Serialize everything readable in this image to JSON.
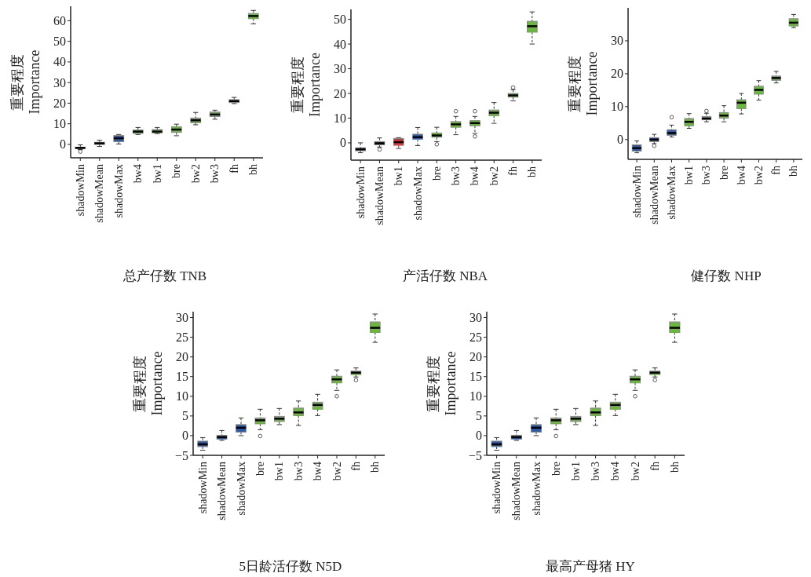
{
  "chart_data": [
    {
      "type": "box",
      "title": "总产仔数 TNB",
      "ylabel": "重要程度\nImportance",
      "categories": [
        "shadowMin",
        "shadowMean",
        "shadowMax",
        "bw4",
        "bw1",
        "bre",
        "bw2",
        "bw3",
        "fh",
        "bh"
      ],
      "colors": [
        "#2a5caa",
        "#2a5caa",
        "#2a5caa",
        "#6ab93a",
        "#6ab93a",
        "#6ab93a",
        "#6ab93a",
        "#6ab93a",
        "#6ab93a",
        "#6ab93a"
      ],
      "ylim": [
        -6.5,
        67
      ],
      "yticks": [
        0,
        10,
        20,
        30,
        40,
        50,
        60
      ],
      "grid": false,
      "boxes": [
        {
          "low": -2.5,
          "q1": -2,
          "median": -1.7,
          "q3": -1.4,
          "high": -0.2,
          "outliers": [
            -3.5
          ]
        },
        {
          "low": -1,
          "q1": 0,
          "median": 0.5,
          "q3": 1,
          "high": 2
        },
        {
          "low": 0.2,
          "q1": 1.3,
          "median": 3,
          "q3": 4.3,
          "high": 4.8
        },
        {
          "low": 4.8,
          "q1": 5.3,
          "median": 6.2,
          "q3": 7,
          "high": 8.2
        },
        {
          "low": 5.2,
          "q1": 5.6,
          "median": 6.2,
          "q3": 7.2,
          "high": 8.2
        },
        {
          "low": 4.2,
          "q1": 5.8,
          "median": 7.2,
          "q3": 8.6,
          "high": 9.8
        },
        {
          "low": 9.5,
          "q1": 10.5,
          "median": 11.7,
          "q3": 12.8,
          "high": 15.5
        },
        {
          "low": 12.2,
          "q1": 13.5,
          "median": 14.5,
          "q3": 15.7,
          "high": 16.6
        },
        {
          "low": 19.8,
          "q1": 20.3,
          "median": 21,
          "q3": 21.7,
          "high": 22.8
        },
        {
          "low": 58.5,
          "q1": 61,
          "median": 62.3,
          "q3": 63.5,
          "high": 65
        }
      ]
    },
    {
      "type": "box",
      "title": "产活仔数 NBA",
      "ylabel": "重要程度\nImportance",
      "categories": [
        "shadowMin",
        "shadowMean",
        "bw1",
        "shadowMax",
        "bre",
        "bw3",
        "bw4",
        "bw2",
        "fh",
        "bh"
      ],
      "colors": [
        "#2a5caa",
        "#2a5caa",
        "#e03030",
        "#2a5caa",
        "#6ab93a",
        "#6ab93a",
        "#6ab93a",
        "#6ab93a",
        "#6ab93a",
        "#6ab93a"
      ],
      "ylim": [
        -7,
        54
      ],
      "yticks": [
        0,
        10,
        20,
        30,
        40,
        50
      ],
      "grid": false,
      "boxes": [
        {
          "low": -4,
          "q1": -3.2,
          "median": -2.6,
          "q3": -2,
          "high": 0
        },
        {
          "low": -1.7,
          "q1": -0.8,
          "median": -0.2,
          "q3": 0.5,
          "high": 2,
          "outliers": [
            -2.7
          ]
        },
        {
          "low": -2.3,
          "q1": -1,
          "median": 0.3,
          "q3": 1.8,
          "high": 2.1
        },
        {
          "low": -1.1,
          "q1": 1.4,
          "median": 2.3,
          "q3": 3.5,
          "high": 6.2
        },
        {
          "low": 0.5,
          "q1": 2.3,
          "median": 3,
          "q3": 4,
          "high": 6.3,
          "outliers": [
            -0.6
          ]
        },
        {
          "low": 3.3,
          "q1": 6.3,
          "median": 7.5,
          "q3": 8.6,
          "high": 10.7,
          "outliers": [
            12.8
          ]
        },
        {
          "low": 3.8,
          "q1": 6.9,
          "median": 8,
          "q3": 9,
          "high": 10.7,
          "outliers": [
            12.8,
            2.6
          ]
        },
        {
          "low": 7.9,
          "q1": 11,
          "median": 12.2,
          "q3": 13.3,
          "high": 16.3
        },
        {
          "low": 17,
          "q1": 18.5,
          "median": 19.2,
          "q3": 20,
          "high": 21.5,
          "outliers": [
            22.4
          ]
        },
        {
          "low": 40,
          "q1": 44.8,
          "median": 47.2,
          "q3": 49.2,
          "high": 53
        }
      ]
    },
    {
      "type": "box",
      "title": "健仔数 NHP",
      "ylabel": "重要程度\nImportance",
      "categories": [
        "shadowMin",
        "shadowMean",
        "shadowMax",
        "bw1",
        "bw3",
        "bre",
        "bw4",
        "bw2",
        "fh",
        "bh"
      ],
      "colors": [
        "#2a5caa",
        "#2a5caa",
        "#2a5caa",
        "#6ab93a",
        "#6ab93a",
        "#6ab93a",
        "#6ab93a",
        "#6ab93a",
        "#6ab93a",
        "#6ab93a"
      ],
      "ylim": [
        -6,
        40
      ],
      "yticks": [
        0,
        10,
        20,
        30
      ],
      "grid": false,
      "boxes": [
        {
          "low": -4,
          "q1": -3.5,
          "median": -2.6,
          "q3": -1.6,
          "high": -0.4
        },
        {
          "low": -1.2,
          "q1": -0.6,
          "median": 0,
          "q3": 0.6,
          "high": 1.6,
          "outliers": [
            -1.9
          ]
        },
        {
          "low": 0.8,
          "q1": 1.3,
          "median": 2,
          "q3": 3,
          "high": 4.4,
          "outliers": [
            6.8
          ]
        },
        {
          "low": 3.4,
          "q1": 4.2,
          "median": 5.4,
          "q3": 6.4,
          "high": 7.9
        },
        {
          "low": 5.4,
          "q1": 6,
          "median": 6.4,
          "q3": 7,
          "high": 8,
          "outliers": [
            8.7
          ]
        },
        {
          "low": 5.4,
          "q1": 6.5,
          "median": 7.3,
          "q3": 8.2,
          "high": 10.3
        },
        {
          "low": 7.8,
          "q1": 9.4,
          "median": 11.2,
          "q3": 12.1,
          "high": 14
        },
        {
          "low": 12,
          "q1": 13.8,
          "median": 15.1,
          "q3": 16.2,
          "high": 17.9
        },
        {
          "low": 17.2,
          "q1": 18,
          "median": 18.7,
          "q3": 19.3,
          "high": 20.7
        },
        {
          "low": 34,
          "q1": 34.5,
          "median": 35.5,
          "q3": 36.7,
          "high": 38
        }
      ]
    },
    {
      "type": "box",
      "title": "5日龄活仔数 N5D",
      "ylabel": "重要程度\nImportance",
      "categories": [
        "shadowMin",
        "shadowMean",
        "shadowMax",
        "bre",
        "bw1",
        "bw3",
        "bw4",
        "bw2",
        "fh",
        "bh"
      ],
      "colors": [
        "#2a5caa",
        "#2a5caa",
        "#2a5caa",
        "#6ab93a",
        "#6ab93a",
        "#6ab93a",
        "#6ab93a",
        "#6ab93a",
        "#6ab93a",
        "#6ab93a"
      ],
      "ylim": [
        -5,
        31.5
      ],
      "yticks": [
        -5,
        0,
        5,
        10,
        15,
        20,
        25,
        30
      ],
      "grid": false,
      "boxes": [
        {
          "low": -3.7,
          "q1": -2.8,
          "median": -2.2,
          "q3": -1.4,
          "high": -0.5
        },
        {
          "low": -1.2,
          "q1": -0.9,
          "median": -0.4,
          "q3": 0.1,
          "high": 1.3
        },
        {
          "low": 0,
          "q1": 0.9,
          "median": 2,
          "q3": 2.8,
          "high": 4.5
        },
        {
          "low": 1.5,
          "q1": 3,
          "median": 3.9,
          "q3": 4.5,
          "high": 6.7,
          "outliers": [
            -0.1
          ]
        },
        {
          "low": 2.8,
          "q1": 3.6,
          "median": 4.3,
          "q3": 4.9,
          "high": 6.9
        },
        {
          "low": 2.6,
          "q1": 5.1,
          "median": 5.9,
          "q3": 7,
          "high": 8.8
        },
        {
          "low": 5.1,
          "q1": 6.7,
          "median": 7.8,
          "q3": 8.5,
          "high": 10.5
        },
        {
          "low": 11.5,
          "q1": 13.4,
          "median": 14.3,
          "q3": 15.1,
          "high": 16.7,
          "outliers": [
            10
          ]
        },
        {
          "low": 14.9,
          "q1": 15.5,
          "median": 16,
          "q3": 16.4,
          "high": 17.2,
          "outliers": [
            14.1
          ]
        },
        {
          "low": 23.7,
          "q1": 26.2,
          "median": 27.4,
          "q3": 28.9,
          "high": 30.9
        }
      ]
    },
    {
      "type": "box",
      "title": "最高产母猪 HY",
      "ylabel": "重要程度\nImportance",
      "categories": [
        "shadowMin",
        "shadowMean",
        "shadowMax",
        "bre",
        "bw1",
        "bw3",
        "bw4",
        "bw2",
        "fh",
        "bh"
      ],
      "colors": [
        "#2a5caa",
        "#2a5caa",
        "#2a5caa",
        "#6ab93a",
        "#6ab93a",
        "#6ab93a",
        "#6ab93a",
        "#6ab93a",
        "#6ab93a",
        "#6ab93a"
      ],
      "ylim": [
        -5,
        31.5
      ],
      "yticks": [
        -5,
        0,
        5,
        10,
        15,
        20,
        25,
        30
      ],
      "grid": false,
      "boxes": [
        {
          "low": -3.7,
          "q1": -2.8,
          "median": -2.2,
          "q3": -1.4,
          "high": -0.5
        },
        {
          "low": -1.2,
          "q1": -0.9,
          "median": -0.4,
          "q3": 0.1,
          "high": 1.3
        },
        {
          "low": 0,
          "q1": 0.9,
          "median": 2,
          "q3": 2.8,
          "high": 4.5
        },
        {
          "low": 1.5,
          "q1": 3,
          "median": 3.9,
          "q3": 4.5,
          "high": 6.7,
          "outliers": [
            -0.1
          ]
        },
        {
          "low": 2.8,
          "q1": 3.6,
          "median": 4.3,
          "q3": 4.9,
          "high": 6.9
        },
        {
          "low": 2.6,
          "q1": 5.1,
          "median": 5.9,
          "q3": 7,
          "high": 8.8
        },
        {
          "low": 5.1,
          "q1": 6.7,
          "median": 7.8,
          "q3": 8.5,
          "high": 10.5
        },
        {
          "low": 11.5,
          "q1": 13.4,
          "median": 14.3,
          "q3": 15.1,
          "high": 16.7,
          "outliers": [
            10
          ]
        },
        {
          "low": 14.9,
          "q1": 15.5,
          "median": 16,
          "q3": 16.4,
          "high": 17.2,
          "outliers": [
            14.1
          ]
        },
        {
          "low": 23.7,
          "q1": 26.2,
          "median": 27.4,
          "q3": 28.9,
          "high": 30.9
        }
      ]
    }
  ]
}
